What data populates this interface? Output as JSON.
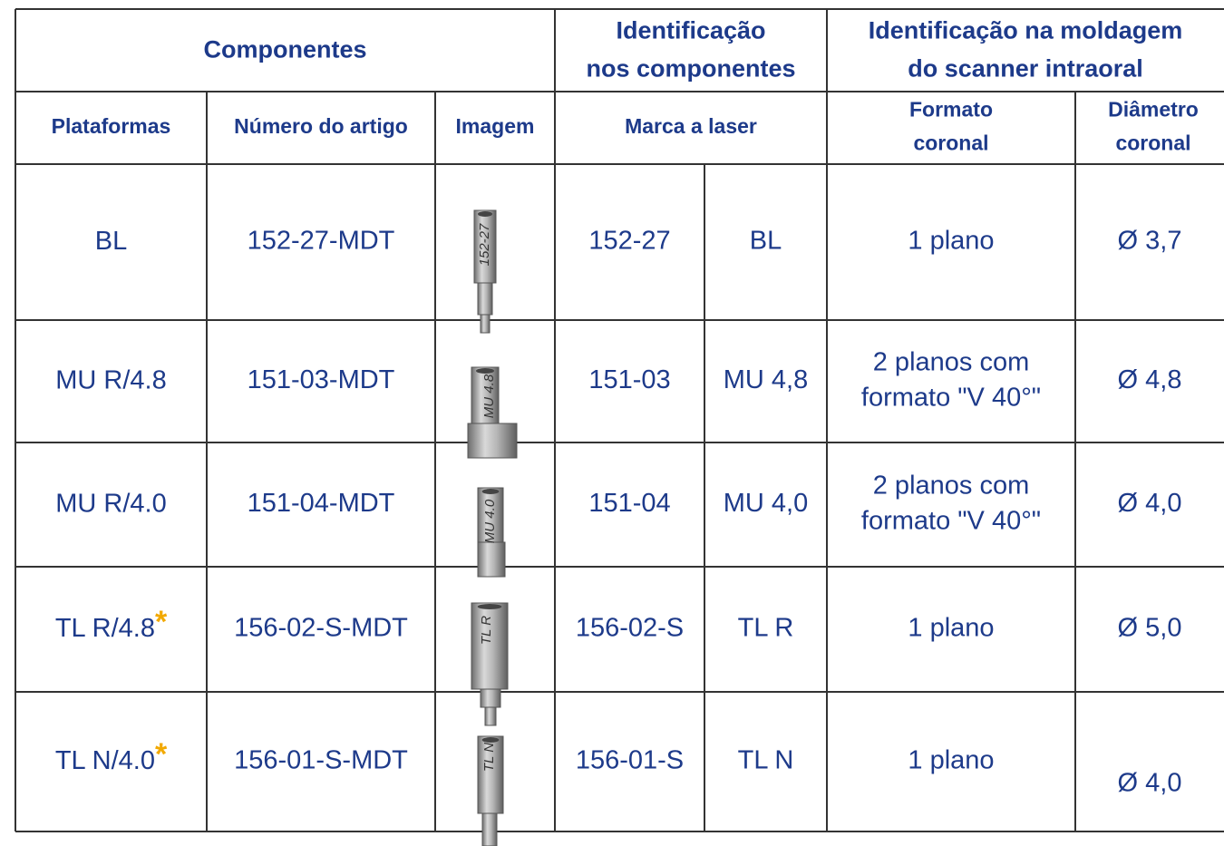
{
  "header": {
    "groups": [
      {
        "lines": [
          "Componentes"
        ]
      },
      {
        "lines": [
          "Identificação",
          "nos componentes"
        ]
      },
      {
        "lines": [
          "Identificação na moldagem",
          "do scanner intraoral"
        ]
      }
    ],
    "columns": [
      {
        "lines": [
          "Plataformas"
        ]
      },
      {
        "lines": [
          "Número do artigo"
        ]
      },
      {
        "lines": [
          "Imagem"
        ]
      },
      {
        "lines": [
          "Marca a laser"
        ]
      },
      {
        "lines": [
          "Formato",
          "coronal"
        ]
      },
      {
        "lines": [
          "Diâmetro",
          "coronal"
        ]
      }
    ]
  },
  "rows": [
    {
      "platform": "BL",
      "article": "152-27-MDT",
      "image_label": "152-27",
      "laser_code": "152-27",
      "laser_mark": "BL",
      "format": [
        "1 plano"
      ],
      "diameter": "Ø 3,7"
    },
    {
      "platform": "MU R/4.8",
      "article": "151-03-MDT",
      "image_label": "MU 4.8",
      "laser_code": "151-03",
      "laser_mark": "MU 4,8",
      "format": [
        "2 planos com",
        "formato \"V 40°\""
      ],
      "diameter": "Ø 4,8"
    },
    {
      "platform": "MU R/4.0",
      "article": "151-04-MDT",
      "image_label": "MU 4.0",
      "laser_code": "151-04",
      "laser_mark": "MU 4,0",
      "format": [
        "2 planos com",
        "formato \"V 40°\""
      ],
      "diameter": "Ø 4,0"
    },
    {
      "platform": "TL R/4.8",
      "note": "*",
      "article": "156-02-S-MDT",
      "image_label": "TL R",
      "laser_code": "156-02-S",
      "laser_mark": "TL R",
      "format": [
        "1 plano"
      ],
      "diameter": "Ø 5,0"
    },
    {
      "platform": "TL N/4.0",
      "note": "*",
      "article": "156-01-S-MDT",
      "image_label": "TL N",
      "laser_code": "156-01-S",
      "laser_mark": "TL N",
      "format": [
        "1 plano"
      ],
      "diameter": "Ø 4,0"
    }
  ]
}
